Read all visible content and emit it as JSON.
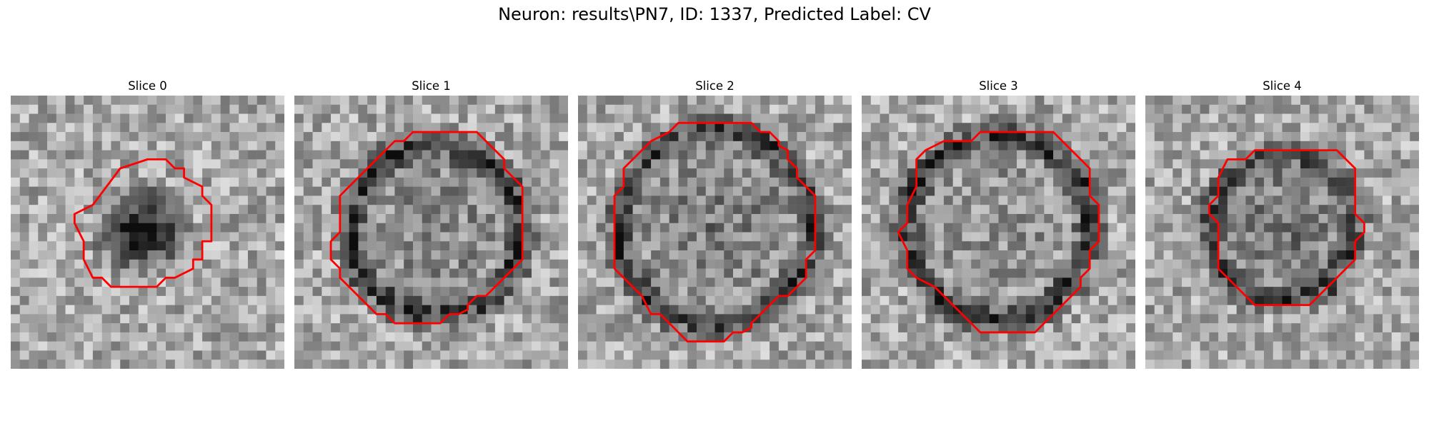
{
  "figure": {
    "title": "Neuron: results\\PN7, ID: 1337, Predicted Label: CV"
  },
  "slices": [
    {
      "label": "Slice 0"
    },
    {
      "label": "Slice 1"
    },
    {
      "label": "Slice 2"
    },
    {
      "label": "Slice 3"
    },
    {
      "label": "Slice 4"
    }
  ],
  "colors": {
    "contour": "#ff0000",
    "background": "#ffffff"
  }
}
